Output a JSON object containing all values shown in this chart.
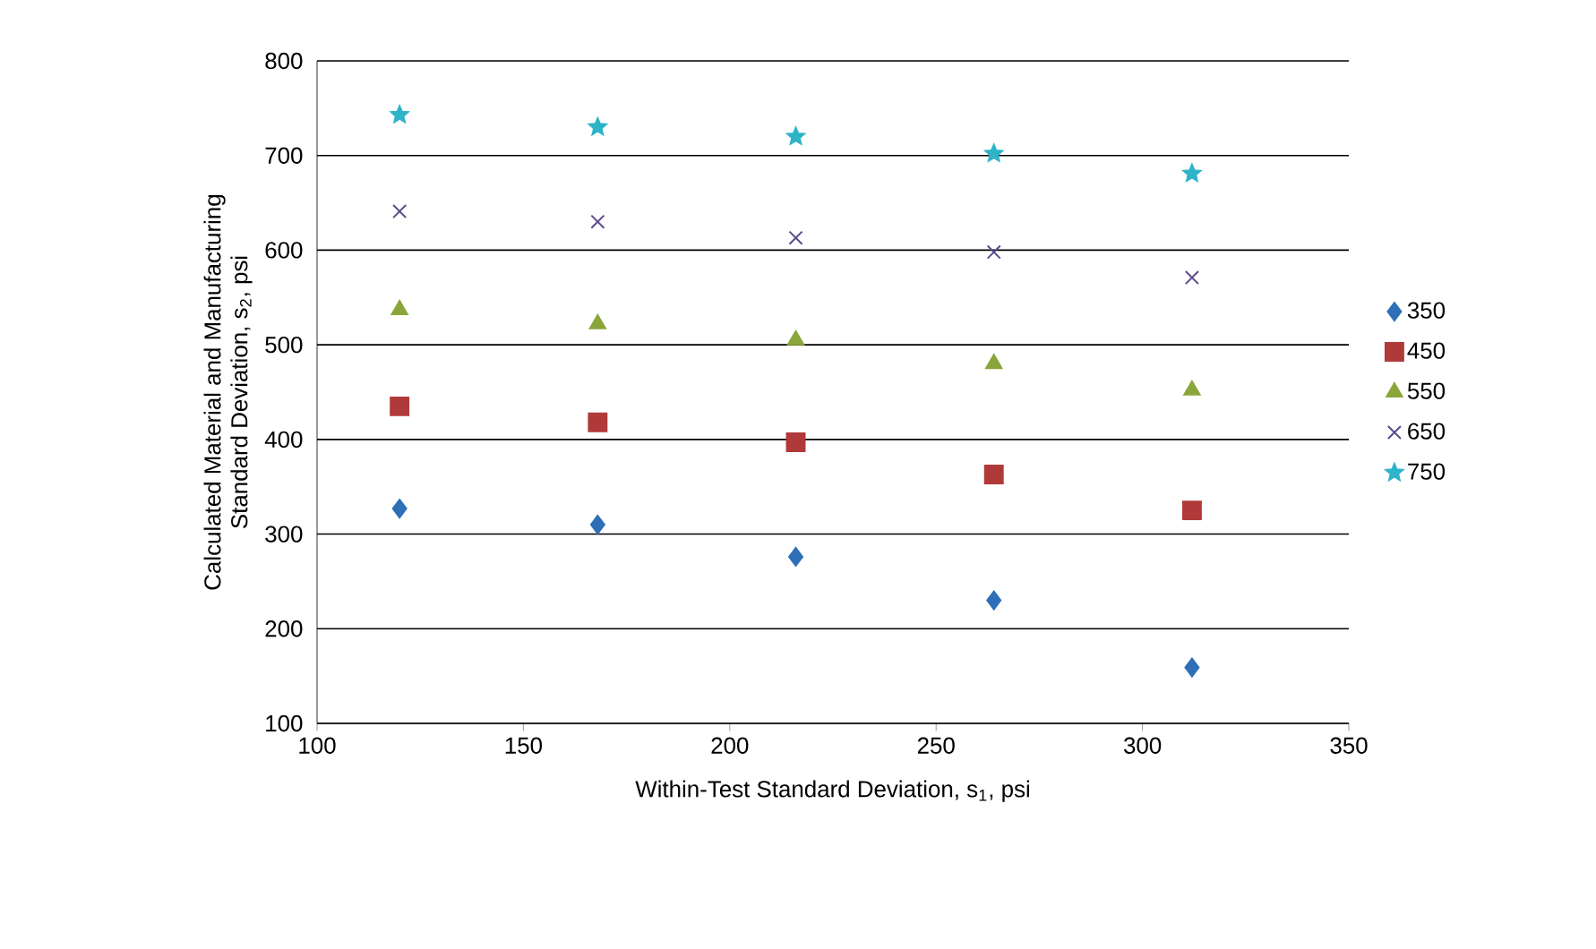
{
  "chart_data": {
    "type": "scatter",
    "xlabel": "Within-Test Standard Deviation, s$_{1}$, psi",
    "ylabel": "Calculated Material and Manufacturing Standard Deviation, s$_{2}$, psi",
    "x": [
      120,
      168,
      216,
      264,
      312
    ],
    "xlim": [
      100,
      350
    ],
    "xticks": [
      100,
      150,
      200,
      250,
      300,
      350
    ],
    "ylim": [
      100,
      800
    ],
    "yticks": [
      100,
      200,
      300,
      400,
      500,
      600,
      700,
      800
    ],
    "grid": "y",
    "legend": "right",
    "series": [
      {
        "name": "350",
        "color": "#2e6fb7",
        "marker": "diamond",
        "values": [
          327,
          310,
          276,
          230,
          159
        ]
      },
      {
        "name": "450",
        "color": "#b03a3a",
        "marker": "square",
        "values": [
          435,
          418,
          397,
          363,
          325
        ]
      },
      {
        "name": "550",
        "color": "#8aa63a",
        "marker": "triangle",
        "values": [
          537,
          522,
          505,
          480,
          452
        ]
      },
      {
        "name": "650",
        "color": "#5b4a8a",
        "marker": "cross",
        "values": [
          641,
          630,
          613,
          598,
          571
        ]
      },
      {
        "name": "750",
        "color": "#2fb3c8",
        "marker": "star",
        "values": [
          743,
          730,
          720,
          702,
          681
        ]
      }
    ]
  }
}
